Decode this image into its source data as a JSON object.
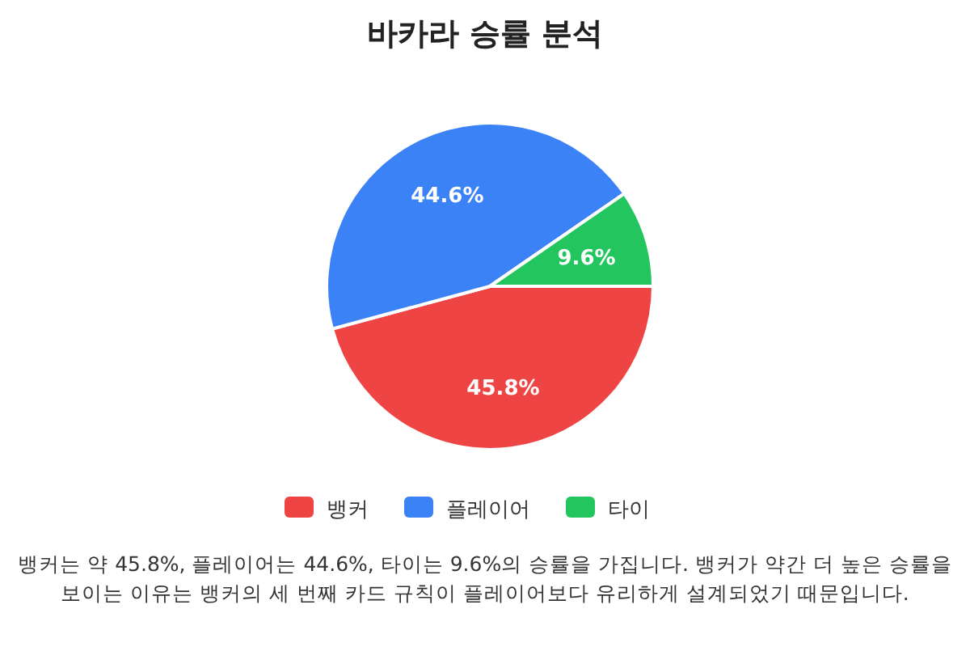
{
  "chart_data": {
    "type": "pie",
    "title": "바카라 승률 분석",
    "categories": [
      "뱅커",
      "플레이어",
      "타이"
    ],
    "values": [
      45.8,
      44.6,
      9.6
    ],
    "colors": [
      "#ef4444",
      "#3b82f6",
      "#22c55e"
    ],
    "value_labels": [
      "45.8%",
      "44.6%",
      "9.6%"
    ],
    "legend": "bottom",
    "annotations": [
      "뱅커는 약 45.8%, 플레이어는 44.6%, 타이는 9.6%의 승률을 가집니다. 뱅커가 약간 더 높은 승률을 보이는 이유는 뱅커의 세 번째 카드 규칙이 플레이어보다 유리하게 설계되었기 때문입니다."
    ]
  }
}
